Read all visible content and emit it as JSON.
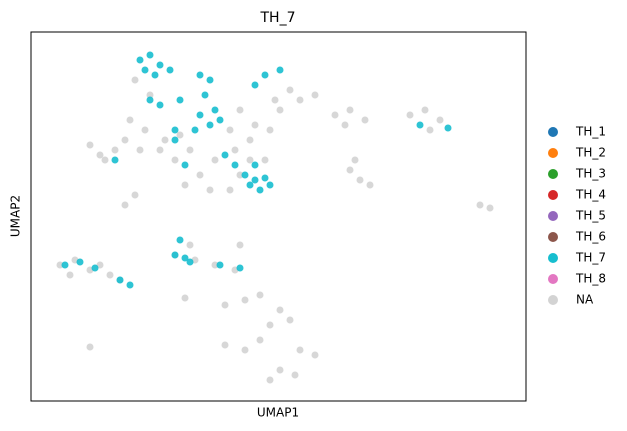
{
  "chart_data": {
    "type": "scatter",
    "title": "TH_7",
    "xlabel": "UMAP1",
    "ylabel": "UMAP2",
    "xlim": [
      0,
      495
    ],
    "ylim": [
      0,
      369
    ],
    "xticks": [],
    "yticks": [],
    "grid": false,
    "legend": "right",
    "series": [
      {
        "name": "TH_1",
        "color": "#1f77b4",
        "x": [],
        "y": []
      },
      {
        "name": "TH_2",
        "color": "#ff7f0e",
        "x": [],
        "y": []
      },
      {
        "name": "TH_3",
        "color": "#2ca02c",
        "x": [],
        "y": []
      },
      {
        "name": "TH_4",
        "color": "#d62728",
        "x": [],
        "y": []
      },
      {
        "name": "TH_5",
        "color": "#9467bd",
        "x": [],
        "y": []
      },
      {
        "name": "TH_6",
        "color": "#8c564b",
        "x": [],
        "y": []
      },
      {
        "name": "TH_7",
        "color": "#17becf",
        "x": [
          109,
          119,
          129,
          124,
          114,
          139,
          119,
          129,
          169,
          179,
          174,
          184,
          169,
          179,
          189,
          164,
          144,
          149,
          194,
          204,
          214,
          224,
          234,
          219,
          239,
          229,
          224,
          234,
          249,
          224,
          84,
          34,
          49,
          64,
          89,
          99,
          144,
          154,
          149,
          159,
          189,
          209,
          389,
          417,
          144,
          154
        ],
        "y": [
          341,
          346,
          336,
          326,
          331,
          331,
          301,
          296,
          326,
          321,
          306,
          291,
          286,
          276,
          281,
          271,
          271,
          301,
          246,
          236,
          226,
          221,
          223,
          216,
          216,
          211,
          236,
          326,
          331,
          316,
          241,
          136,
          139,
          133,
          121,
          116,
          146,
          143,
          161,
          139,
          136,
          133,
          276,
          273,
          261,
          236
        ]
      },
      {
        "name": "TH_8",
        "color": "#e377c2",
        "x": [],
        "y": []
      },
      {
        "name": "NA",
        "color": "#d3d3d3",
        "x": [
          104,
          119,
          99,
          114,
          134,
          149,
          159,
          144,
          129,
          209,
          224,
          239,
          219,
          204,
          249,
          269,
          284,
          259,
          244,
          199,
          184,
          169,
          179,
          154,
          199,
          219,
          234,
          209,
          59,
          69,
          84,
          74,
          94,
          109,
          304,
          319,
          334,
          314,
          379,
          394,
          409,
          399,
          319,
          329,
          339,
          324,
          449,
          459,
          104,
          94,
          29,
          44,
          59,
          69,
          79,
          39,
          89,
          144,
          164,
          184,
          204,
          159,
          194,
          214,
          229,
          249,
          259,
          239,
          194,
          214,
          229,
          269,
          284,
          249,
          264,
          239,
          59,
          154,
          209
        ],
        "y": [
          321,
          306,
          281,
          271,
          261,
          266,
          251,
          241,
          251,
          291,
          276,
          271,
          261,
          251,
          291,
          301,
          306,
          311,
          301,
          271,
          241,
          226,
          211,
          216,
          211,
          241,
          241,
          226,
          256,
          246,
          251,
          241,
          261,
          251,
          286,
          291,
          281,
          276,
          286,
          291,
          281,
          271,
          231,
          221,
          216,
          241,
          196,
          193,
          206,
          196,
          136,
          141,
          131,
          136,
          126,
          126,
          121,
          146,
          141,
          136,
          131,
          156,
          96,
          101,
          106,
          91,
          81,
          76,
          56,
          51,
          61,
          51,
          46,
          31,
          26,
          21,
          54,
          103,
          156
        ]
      }
    ]
  }
}
